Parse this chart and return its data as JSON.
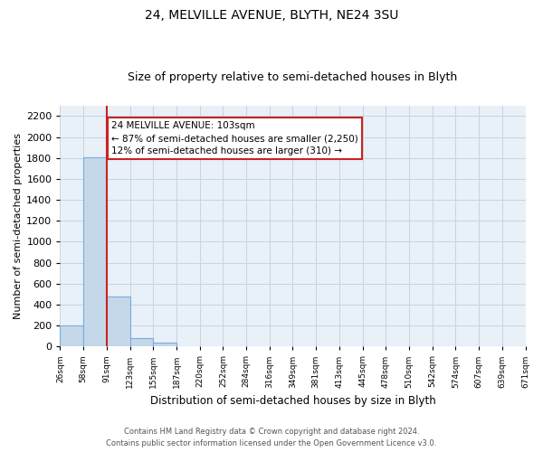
{
  "title": "24, MELVILLE AVENUE, BLYTH, NE24 3SU",
  "subtitle": "Size of property relative to semi-detached houses in Blyth",
  "xlabel": "Distribution of semi-detached houses by size in Blyth",
  "ylabel": "Number of semi-detached properties",
  "bar_values": [
    197,
    1810,
    475,
    83,
    35,
    0,
    0,
    0,
    0,
    0,
    0,
    0,
    0,
    0,
    0,
    0,
    0,
    0,
    0,
    0
  ],
  "bar_labels": [
    "26sqm",
    "58sqm",
    "91sqm",
    "123sqm",
    "155sqm",
    "187sqm",
    "220sqm",
    "252sqm",
    "284sqm",
    "316sqm",
    "349sqm",
    "381sqm",
    "413sqm",
    "445sqm",
    "478sqm",
    "510sqm",
    "542sqm",
    "574sqm",
    "607sqm",
    "639sqm",
    "671sqm"
  ],
  "bar_color": "#c5d8ea",
  "bar_edge_color": "#7aabe0",
  "plot_bg_color": "#e8f0f8",
  "annotation_text": "24 MELVILLE AVENUE: 103sqm\n← 87% of semi-detached houses are smaller (2,250)\n12% of semi-detached houses are larger (310) →",
  "annotation_box_color": "#ffffff",
  "annotation_box_edge": "#cc2222",
  "property_line_color": "#cc2222",
  "ylim": [
    0,
    2300
  ],
  "yticks": [
    0,
    200,
    400,
    600,
    800,
    1000,
    1200,
    1400,
    1600,
    1800,
    2000,
    2200
  ],
  "footer_line1": "Contains HM Land Registry data © Crown copyright and database right 2024.",
  "footer_line2": "Contains public sector information licensed under the Open Government Licence v3.0.",
  "background_color": "#ffffff",
  "grid_color": "#c8d4e0"
}
